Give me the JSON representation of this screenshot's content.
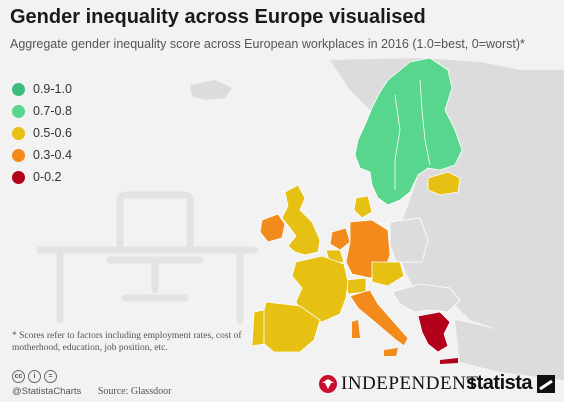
{
  "title": "Gender inequality across Europe visualised",
  "subtitle": "Aggregate gender inequality score across European workplaces in 2016 (1.0=best, 0=worst)*",
  "legend": [
    {
      "label": "0.9-1.0",
      "color": "#3dbb7e"
    },
    {
      "label": "0.7-0.8",
      "color": "#58d68d"
    },
    {
      "label": "0.5-0.6",
      "color": "#e6c013"
    },
    {
      "label": "0.3-0.4",
      "color": "#f28a1c"
    },
    {
      "label": "0-0.2",
      "color": "#b3001b"
    }
  ],
  "footnote": "* Scores refer to factors including employment rates, cost of motherhood, education, job position, etc.",
  "footer": {
    "handle": "@StatistaCharts",
    "source": "Source: Glassdoor",
    "independent": "INDEPENDENT",
    "statista": "statista"
  },
  "colors": {
    "other_land": "#dcdcdc",
    "sea": "#f2f2f2",
    "green": "#58d68d",
    "yellow": "#e6c013",
    "orange": "#f28a1c",
    "red": "#b3001b"
  }
}
